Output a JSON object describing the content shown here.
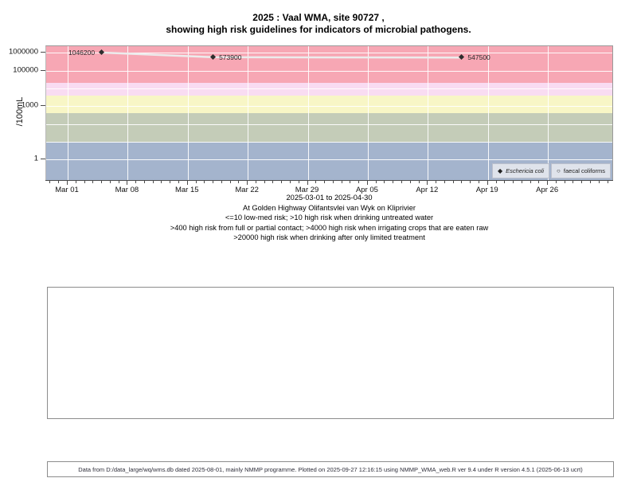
{
  "title": {
    "line1": "2025 : Vaal WMA, site 90727 ,",
    "line2": "showing high risk guidelines for indicators of microbial pathogens."
  },
  "chart_data": {
    "type": "scatter",
    "title": "2025 : Vaal WMA, site 90727 , showing high risk guidelines for indicators of microbial pathogens.",
    "ylabel": "/100mL",
    "y_scale": "log10",
    "ylim": [
      1,
      2000000
    ],
    "y_ticks": [
      "1000000",
      "100000",
      "1000",
      "1"
    ],
    "x_range": "2025-03-01 to 2025-04-30",
    "x_ticks": [
      "Mar 01",
      "Mar 08",
      "Mar 15",
      "Mar 22",
      "Mar 29",
      "Apr 05",
      "Apr 12",
      "Apr 19",
      "Apr 26"
    ],
    "grid": true,
    "legend_position": "bottom-right",
    "series": [
      {
        "name": "Eschericia coli",
        "marker": "filled-diamond",
        "marker_color": "#2d2d2d",
        "line_color": "#ececec",
        "points": [
          {
            "date": "2025-03-05",
            "day": 4,
            "value": 1046200,
            "label": "1046200",
            "label_side": "left"
          },
          {
            "date": "2025-03-18",
            "day": 17,
            "value": 573900,
            "label": "573900",
            "label_side": "right"
          },
          {
            "date": "2025-04-16",
            "day": 46,
            "value": 547500,
            "label": "547500",
            "label_side": "right"
          }
        ]
      },
      {
        "name": "faecal coliforms",
        "marker": "open-circle",
        "points": []
      }
    ],
    "risk_bands": [
      {
        "label": ">20000 high risk when drinking after only limited treatment",
        "lo": 20000,
        "hi": null,
        "color": "#f7a7b4"
      },
      {
        "label": "4000-20000 high risk when irrigating crops eaten raw",
        "lo": 4000,
        "hi": 20000,
        "color": "#f9dcf2"
      },
      {
        "label": "400-4000 high risk from full or partial contact",
        "lo": 400,
        "hi": 4000,
        "color": "#f8f6c6"
      },
      {
        "label": "10-400 high risk when drinking untreated water",
        "lo": 10,
        "hi": 400,
        "color": "#c4ccb8"
      },
      {
        "label": "<=10 low-med risk",
        "lo": null,
        "hi": 10,
        "color": "#a4b4cd"
      }
    ]
  },
  "legend": {
    "items": [
      {
        "label": "Eschericia coli",
        "marker": "filled-diamond",
        "italic": true
      },
      {
        "label": "faecal coliforms",
        "marker": "open-circle",
        "italic": false
      }
    ]
  },
  "caption": {
    "line1": "2025-03-01 to 2025-04-30",
    "line2": "At Golden Highway Olifantsvlei van Wyk on Kliprivier",
    "line3": "<=10 low-med risk; >10 high risk when drinking untreated water",
    "line4": ">400 high risk from full or partial contact; >4000 high risk when irrigating crops that are eaten raw",
    "line5": ">20000 high risk when drinking after only limited treatment"
  },
  "footer": "Data from D:/data_large/wq/wms.db dated 2025-08-01, mainly NMMP programme. Plotted on 2025-09-27 12:16:15 using NMMP_WMA_web.R ver 9.4 under R version 4.5.1 (2025-06-13 ucrt)"
}
